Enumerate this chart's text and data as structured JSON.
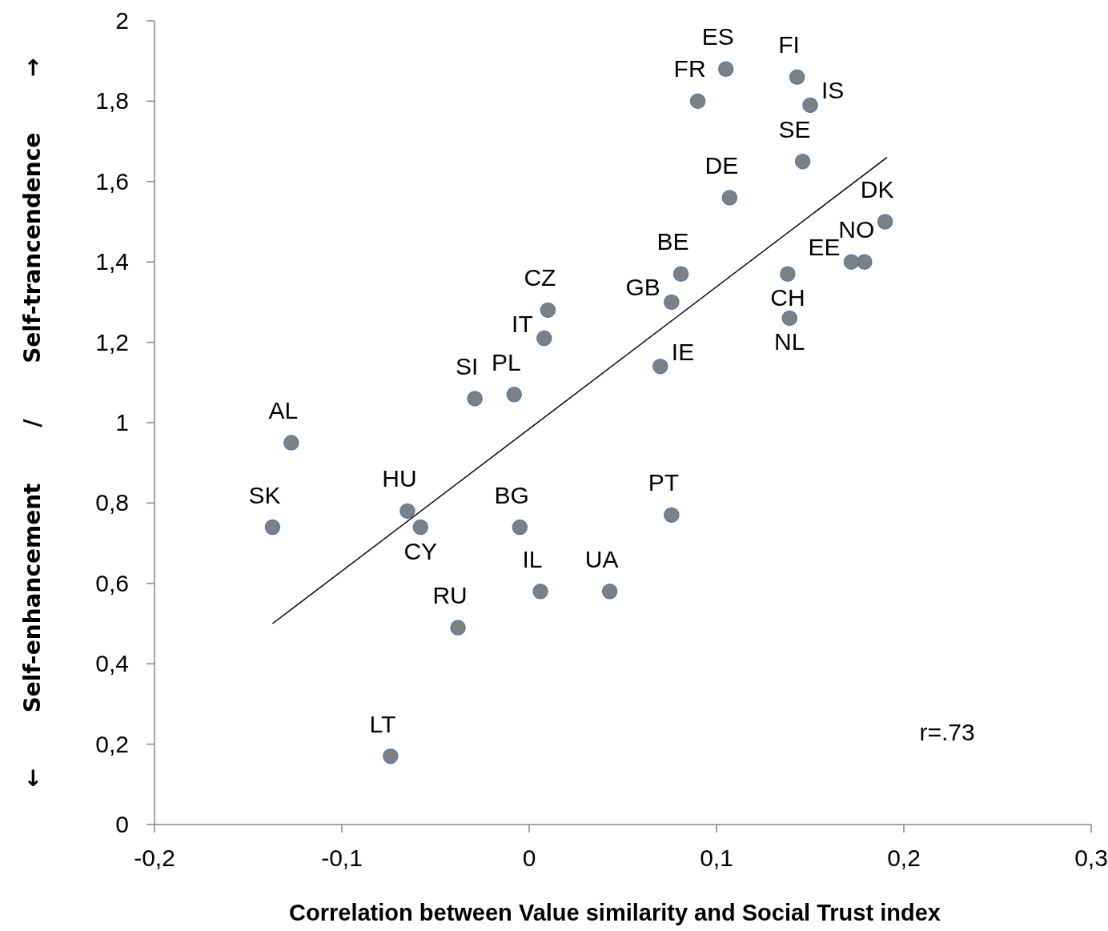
{
  "chart_data": {
    "type": "scatter",
    "xlabel": "Correlation between Value similarity and Social Trust index",
    "ylabel": "← Self-enhancement / Self-trancendence →",
    "xlim": [
      -0.2,
      0.3
    ],
    "xticks": [
      {
        "value": -0.2,
        "label": "-0,2"
      },
      {
        "value": -0.1,
        "label": "-0,1"
      },
      0,
      {
        "value": 0.1,
        "label": "0,1"
      },
      {
        "value": 0.2,
        "label": "0,2"
      },
      {
        "value": 0.3,
        "label": "0,3"
      }
    ],
    "ylim": [
      0,
      2
    ],
    "yticks": [
      0,
      {
        "value": 0.2,
        "label": "0,2"
      },
      {
        "value": 0.4,
        "label": "0,4"
      },
      {
        "value": 0.6,
        "label": "0,6"
      },
      {
        "value": 0.8,
        "label": "0,8"
      },
      1,
      {
        "value": 1.2,
        "label": "1,2"
      },
      {
        "value": 1.4,
        "label": "1,4"
      },
      {
        "value": 1.6,
        "label": "1,6"
      },
      {
        "value": 1.8,
        "label": "1,8"
      },
      2
    ],
    "grid": false,
    "marker": "circle",
    "series": [
      {
        "color": "#808080",
        "x": [
          0.105,
          0.09,
          0.143,
          0.15,
          0.146,
          0.107,
          0.19,
          0.179,
          0.172,
          0.138,
          0.139,
          0.081,
          0.076,
          0.07,
          0.01,
          0.008,
          -0.008,
          -0.029,
          -0.127,
          -0.137,
          -0.065,
          -0.058,
          -0.005,
          0.076,
          0.006,
          0.043,
          -0.038,
          -0.074
        ],
        "values": [
          1.88,
          1.8,
          1.86,
          1.79,
          1.65,
          1.56,
          1.5,
          1.4,
          1.4,
          1.37,
          1.26,
          1.37,
          1.3,
          1.14,
          1.28,
          1.21,
          1.07,
          1.06,
          0.95,
          0.74,
          0.78,
          0.74,
          0.74,
          0.77,
          0.58,
          0.58,
          0.49,
          0.17
        ]
      },
      {
        "type": "line",
        "marker": "none",
        "color": "#000000",
        "x": [
          -0.137,
          0.191
        ],
        "values": [
          0.5,
          1.66
        ]
      }
    ],
    "annotations": [
      {
        "text": "ES",
        "x": 0.105,
        "y": 1.88
      },
      {
        "text": "FR",
        "x": 0.09,
        "y": 1.8
      },
      {
        "text": "FI",
        "x": 0.143,
        "y": 1.86
      },
      {
        "text": "IS",
        "x": 0.15,
        "y": 1.79
      },
      {
        "text": "SE",
        "x": 0.146,
        "y": 1.65
      },
      {
        "text": "DE",
        "x": 0.107,
        "y": 1.56
      },
      {
        "text": "DK",
        "x": 0.19,
        "y": 1.5
      },
      {
        "text": "NO",
        "x": 0.179,
        "y": 1.4
      },
      {
        "text": "EE",
        "x": 0.172,
        "y": 1.4
      },
      {
        "text": "CH",
        "x": 0.138,
        "y": 1.37
      },
      {
        "text": "NL",
        "x": 0.139,
        "y": 1.26
      },
      {
        "text": "BE",
        "x": 0.081,
        "y": 1.37
      },
      {
        "text": "GB",
        "x": 0.076,
        "y": 1.3
      },
      {
        "text": "IE",
        "x": 0.07,
        "y": 1.14
      },
      {
        "text": "CZ",
        "x": 0.01,
        "y": 1.28
      },
      {
        "text": "IT",
        "x": 0.008,
        "y": 1.21
      },
      {
        "text": "PL",
        "x": -0.008,
        "y": 1.07
      },
      {
        "text": "SI",
        "x": -0.029,
        "y": 1.06
      },
      {
        "text": "AL",
        "x": -0.127,
        "y": 0.95
      },
      {
        "text": "SK",
        "x": -0.137,
        "y": 0.74
      },
      {
        "text": "HU",
        "x": -0.065,
        "y": 0.78
      },
      {
        "text": "CY",
        "x": -0.058,
        "y": 0.74
      },
      {
        "text": "BG",
        "x": -0.005,
        "y": 0.74
      },
      {
        "text": "PT",
        "x": 0.076,
        "y": 0.77
      },
      {
        "text": "IL",
        "x": 0.006,
        "y": 0.58
      },
      {
        "text": "UA",
        "x": 0.043,
        "y": 0.58
      },
      {
        "text": "RU",
        "x": -0.038,
        "y": 0.49
      },
      {
        "text": "LT",
        "x": -0.074,
        "y": 0.17
      },
      "r=.73"
    ]
  }
}
